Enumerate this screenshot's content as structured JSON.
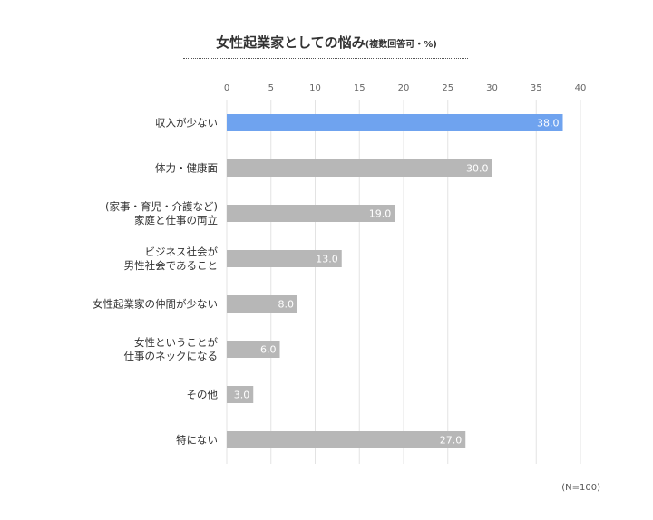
{
  "title": {
    "main": "女性起業家としての悩み",
    "sub": "(複数回答可・%)"
  },
  "note": "(N=100)",
  "colors": {
    "highlight": "#6fa3ef",
    "bar": "#b7b7b7",
    "grid": "#e3e3e3",
    "value_label": "#ffffff"
  },
  "chart_data": {
    "type": "bar",
    "orientation": "horizontal",
    "title": "女性起業家としての悩み",
    "xlim": [
      0,
      40
    ],
    "x_ticks": [
      0,
      5,
      10,
      15,
      20,
      25,
      30,
      35,
      40
    ],
    "grid": true,
    "categories": [
      [
        "収入が少ない"
      ],
      [
        "体力・健康面"
      ],
      [
        "(家事・育児・介護など)",
        "家庭と仕事の両立"
      ],
      [
        "ビジネス社会が",
        "男性社会であること"
      ],
      [
        "女性起業家の仲間が少ない"
      ],
      [
        "女性ということが",
        "仕事のネックになる"
      ],
      [
        "その他"
      ],
      [
        "特にない"
      ]
    ],
    "values": [
      38.0,
      30.0,
      19.0,
      13.0,
      8.0,
      6.0,
      3.0,
      27.0
    ],
    "value_labels": [
      "38.0",
      "30.0",
      "19.0",
      "13.0",
      "8.0",
      "6.0",
      "3.0",
      "27.0"
    ],
    "highlight_index": 0
  }
}
